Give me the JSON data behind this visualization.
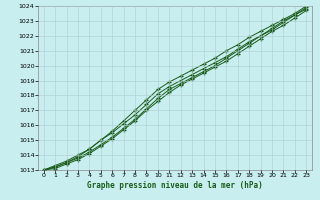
{
  "title": "Graphe pression niveau de la mer (hPa)",
  "background_color": "#c8eef0",
  "grid_color": "#b0cdd0",
  "line_color": "#1a5c1a",
  "marker_color": "#1a5c1a",
  "xlim": [
    -0.5,
    23.5
  ],
  "ylim": [
    1013,
    1024
  ],
  "xticks": [
    0,
    1,
    2,
    3,
    4,
    5,
    6,
    7,
    8,
    9,
    10,
    11,
    12,
    13,
    14,
    15,
    16,
    17,
    18,
    19,
    20,
    21,
    22,
    23
  ],
  "yticks": [
    1013,
    1014,
    1015,
    1016,
    1017,
    1018,
    1019,
    1020,
    1021,
    1022,
    1023,
    1024
  ],
  "series": [
    [
      1013.0,
      1013.2,
      1013.5,
      1013.8,
      1014.2,
      1014.7,
      1015.2,
      1015.8,
      1016.4,
      1017.1,
      1017.8,
      1018.4,
      1018.8,
      1019.2,
      1019.6,
      1020.0,
      1020.5,
      1021.0,
      1021.5,
      1022.0,
      1022.4,
      1022.9,
      1023.4,
      1023.8
    ],
    [
      1013.0,
      1013.3,
      1013.6,
      1014.0,
      1014.4,
      1015.0,
      1015.5,
      1016.1,
      1016.7,
      1017.4,
      1018.1,
      1018.6,
      1019.0,
      1019.4,
      1019.8,
      1020.2,
      1020.6,
      1021.1,
      1021.6,
      1022.0,
      1022.5,
      1023.0,
      1023.4,
      1023.9
    ],
    [
      1013.0,
      1013.1,
      1013.4,
      1013.7,
      1014.1,
      1014.6,
      1015.1,
      1015.7,
      1016.3,
      1017.0,
      1017.6,
      1018.2,
      1018.7,
      1019.1,
      1019.5,
      1019.9,
      1020.3,
      1020.8,
      1021.3,
      1021.8,
      1022.3,
      1022.7,
      1023.2,
      1023.7
    ],
    [
      1013.0,
      1013.2,
      1013.5,
      1013.9,
      1014.4,
      1015.0,
      1015.6,
      1016.3,
      1017.0,
      1017.7,
      1018.4,
      1018.9,
      1019.3,
      1019.7,
      1020.1,
      1020.5,
      1021.0,
      1021.4,
      1021.9,
      1022.3,
      1022.7,
      1023.1,
      1023.5,
      1024.0
    ]
  ]
}
